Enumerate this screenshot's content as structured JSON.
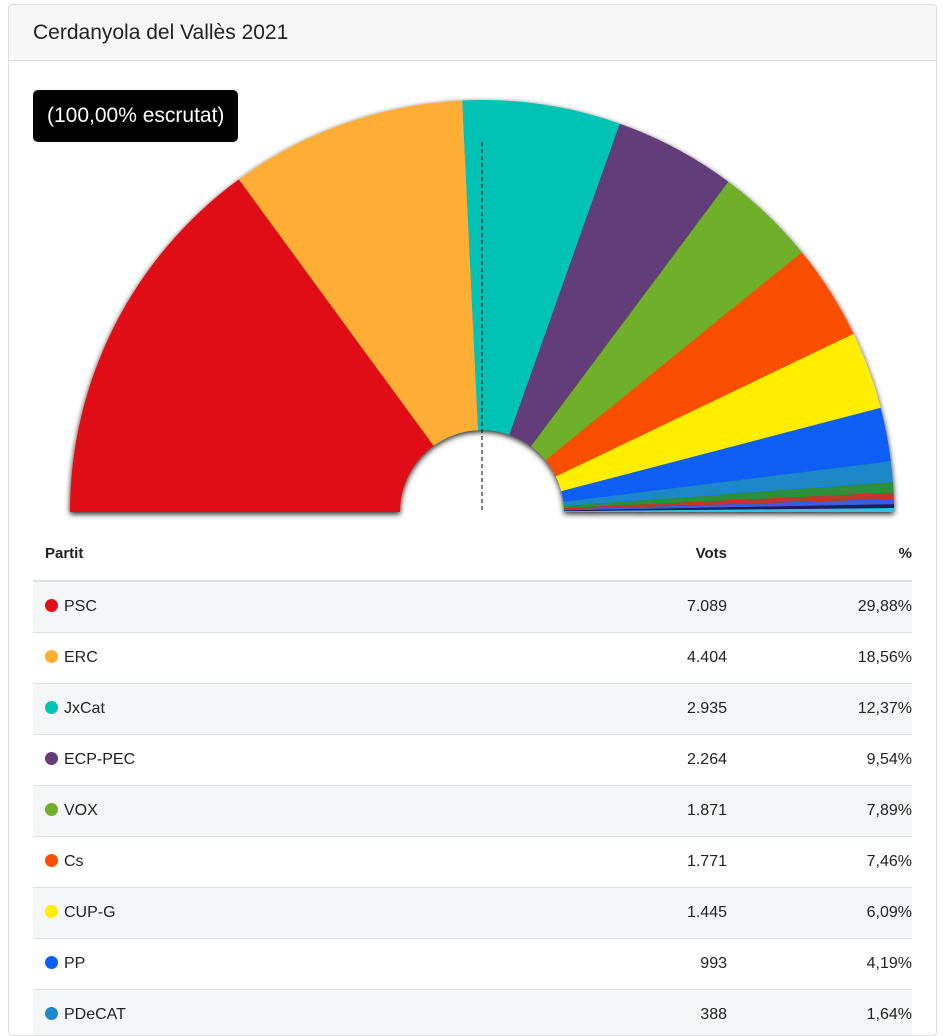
{
  "header": {
    "title": "Cerdanyola del Vallès 2021"
  },
  "badge": {
    "text": "(100,00% escrutat)"
  },
  "table": {
    "col_party": "Partit",
    "col_votes": "Vots",
    "col_pct": "%"
  },
  "chart_data": {
    "type": "pie",
    "subtype": "hemicycle",
    "majority_marker": "dashed vertical line at center",
    "series": [
      {
        "name": "PSC",
        "votes": "7.089",
        "pct": "29,88%",
        "value": 29.88,
        "color": "#e10e18"
      },
      {
        "name": "ERC",
        "votes": "4.404",
        "pct": "18,56%",
        "value": 18.56,
        "color": "#ffae34"
      },
      {
        "name": "JxCat",
        "votes": "2.935",
        "pct": "12,37%",
        "value": 12.37,
        "color": "#03c3b5"
      },
      {
        "name": "ECP-PEC",
        "votes": "2.264",
        "pct": "9,54%",
        "value": 9.54,
        "color": "#643e7a"
      },
      {
        "name": "VOX",
        "votes": "1.871",
        "pct": "7,89%",
        "value": 7.89,
        "color": "#6faf2a"
      },
      {
        "name": "Cs",
        "votes": "1.771",
        "pct": "7,46%",
        "value": 7.46,
        "color": "#fa4f00"
      },
      {
        "name": "CUP-G",
        "votes": "1.445",
        "pct": "6,09%",
        "value": 6.09,
        "color": "#ffee00"
      },
      {
        "name": "PP",
        "votes": "993",
        "pct": "4,19%",
        "value": 4.19,
        "color": "#0a5ff5"
      },
      {
        "name": "PDeCAT",
        "votes": "388",
        "pct": "1,64%",
        "value": 1.64,
        "color": "#1c87c9"
      }
    ],
    "minor_slices": [
      {
        "value": 0.8,
        "color": "#2f8f3a"
      },
      {
        "value": 0.5,
        "color": "#c0392b"
      },
      {
        "value": 0.4,
        "color": "#3b5bdb"
      },
      {
        "value": 0.3,
        "color": "#1a1a5e"
      },
      {
        "value": 0.3,
        "color": "#2ec4e6"
      }
    ]
  }
}
